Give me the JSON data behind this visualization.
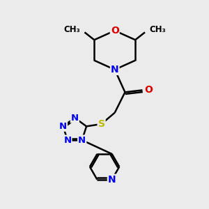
{
  "bg_color": "#ebebeb",
  "bond_color": "#000000",
  "bond_width": 1.8,
  "atom_colors": {
    "N": "#0000ee",
    "O": "#dd0000",
    "S": "#bbbb00",
    "C": "#000000"
  },
  "font_size_atom": 10,
  "font_size_methyl": 8.5
}
